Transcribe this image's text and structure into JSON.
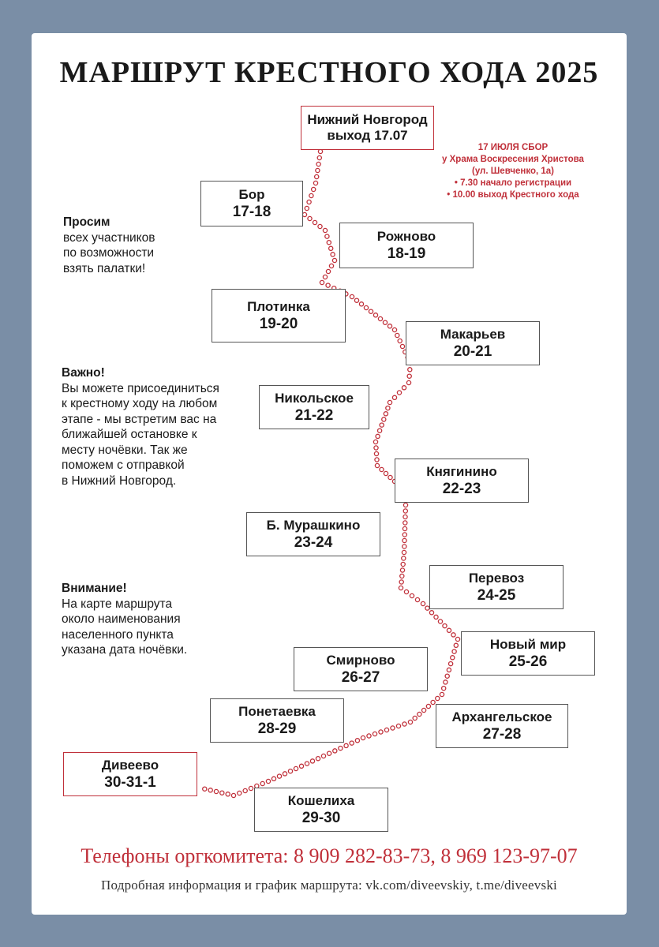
{
  "title": "МАРШРУТ КРЕСТНОГО ХОДА 2025",
  "start": {
    "name": "Нижний Новгород",
    "dates": "выход 17.07"
  },
  "meeting": {
    "title": "17 ИЮЛЯ СБОР",
    "lines": [
      "у Храма Воскресения Христова",
      "(ул. Шевченко, 1а)",
      "• 7.30 начало регистрации",
      "• 10.00 выход Крестного хода"
    ]
  },
  "stops": [
    {
      "name": "Бор",
      "dates": "17-18"
    },
    {
      "name": "Рожново",
      "dates": "18-19"
    },
    {
      "name": "Плотинка",
      "dates": "19-20"
    },
    {
      "name": "Макарьев",
      "dates": "20-21"
    },
    {
      "name": "Никольское",
      "dates": "21-22"
    },
    {
      "name": "Княгинино",
      "dates": "22-23"
    },
    {
      "name": "Б. Мурашкино",
      "dates": "23-24"
    },
    {
      "name": "Перевоз",
      "dates": "24-25"
    },
    {
      "name": "Новый мир",
      "dates": "25-26"
    },
    {
      "name": "Смирново",
      "dates": "26-27"
    },
    {
      "name": "Архангельское",
      "dates": "27-28"
    },
    {
      "name": "Понетаевка",
      "dates": "28-29"
    },
    {
      "name": "Кошелиха",
      "dates": "29-30"
    }
  ],
  "finish": {
    "name": "Дивеево",
    "dates": "30-31-1"
  },
  "notes": {
    "tents": {
      "head": "Просим",
      "lines": [
        "всех участников",
        "по возможности",
        "взять палатки!"
      ]
    },
    "important": {
      "head": "Важно!",
      "lines": [
        "Вы можете присоединиться",
        "к крестному ходу на любом",
        "этапе - мы встретим вас на",
        "ближайшей остановке к",
        "месту ночёвки. Так же",
        "поможем с отправкой",
        "в Нижний Новгород."
      ]
    },
    "attention": {
      "head": "Внимание!",
      "lines": [
        "На карте маршрута",
        "около наименования",
        "населенного пункта",
        "указана дата ночёвки."
      ]
    }
  },
  "footer": {
    "phones": "Телефоны оргкомитета: 8 909 282-83-73, 8 969 123-97-07",
    "info": "Подробная информация и график маршрута: vk.com/diveevskiy, t.me/diveevski"
  },
  "colors": {
    "accent": "#c0303a",
    "background": "#7a8ea6",
    "text": "#1a1a1a"
  }
}
